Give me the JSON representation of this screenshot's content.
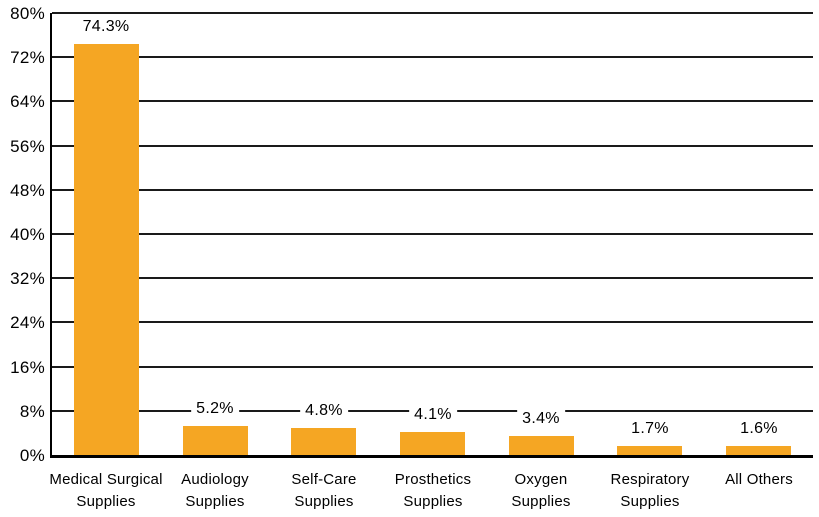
{
  "chart_data": {
    "type": "bar",
    "title": "",
    "xlabel": "",
    "ylabel": "",
    "categories": [
      "Medical Surgical\nSupplies",
      "Audiology\nSupplies",
      "Self-Care\nSupplies",
      "Prosthetics\nSupplies",
      "Oxygen\nSupplies",
      "Respiratory\nSupplies",
      "All Others"
    ],
    "values": [
      74.3,
      5.2,
      4.8,
      4.1,
      3.4,
      1.7,
      1.6
    ],
    "data_labels": [
      "74.3%",
      "5.2%",
      "4.8%",
      "4.1%",
      "3.4%",
      "1.7%",
      "1.6%"
    ],
    "ylim": [
      0,
      80
    ],
    "y_tick_values": [
      0,
      8,
      16,
      24,
      32,
      40,
      48,
      56,
      64,
      72,
      80
    ],
    "y_tick_labels": [
      "0%",
      "8%",
      "16%",
      "24%",
      "32%",
      "40%",
      "48%",
      "56%",
      "64%",
      "72%",
      "80%"
    ],
    "grid": "horizontal",
    "legend": "none",
    "colors": {
      "bar_fill": "#F5A623",
      "grid_line": "#1A1A1A",
      "axis_line": "#000000",
      "text": "#000000",
      "background": "#FFFFFF"
    }
  }
}
